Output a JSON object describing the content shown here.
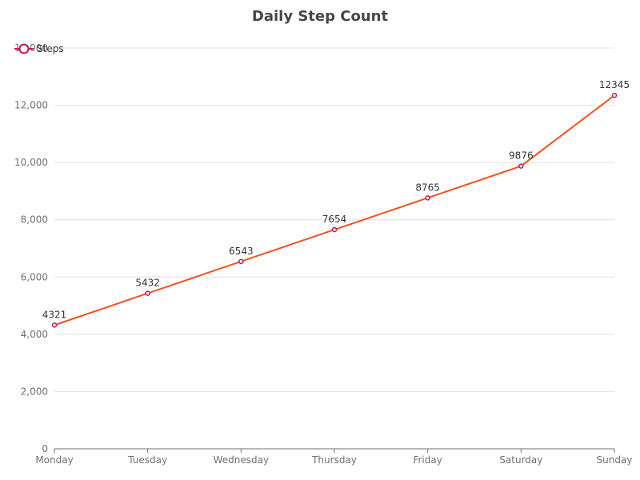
{
  "chart_data": {
    "type": "line",
    "title": "Daily Step Count",
    "categories": [
      "Monday",
      "Tuesday",
      "Wednesday",
      "Thursday",
      "Friday",
      "Saturday",
      "Sunday"
    ],
    "series": [
      {
        "name": "Steps",
        "values": [
          4321,
          5432,
          6543,
          7654,
          8765,
          9876,
          12345
        ],
        "color": "#f4511e",
        "marker_color": "#c2185b"
      }
    ],
    "ylim": [
      0,
      14000
    ],
    "yticks": [
      0,
      2000,
      4000,
      6000,
      8000,
      10000,
      12000,
      14000
    ],
    "ytick_labels": [
      "0",
      "2,000",
      "4,000",
      "6,000",
      "8,000",
      "10,000",
      "12,000",
      "14,000"
    ],
    "xlabel": "",
    "ylabel": "",
    "grid": true,
    "legend_position": "top-left",
    "show_data_labels": true
  }
}
